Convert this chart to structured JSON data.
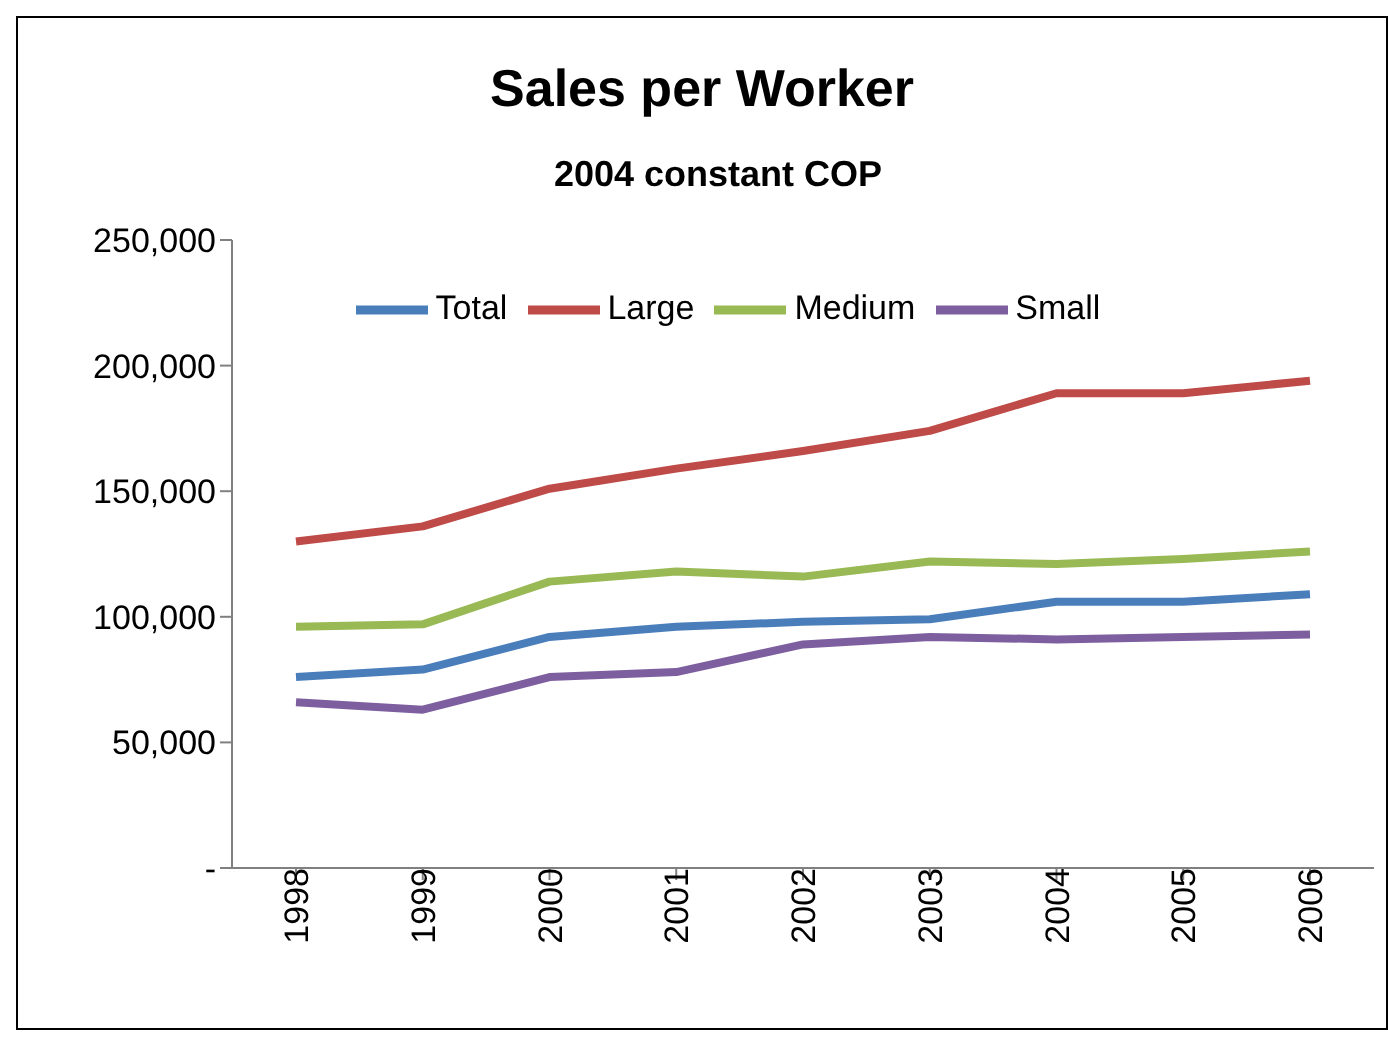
{
  "chart_data": {
    "type": "line",
    "title": "Sales per Worker",
    "subtitle": "2004 constant COP",
    "categories": [
      "1998",
      "1999",
      "2000",
      "2001",
      "2002",
      "2003",
      "2004",
      "2005",
      "2006"
    ],
    "series": [
      {
        "name": "Total",
        "color": "#4a7ebb",
        "values": [
          76000,
          79000,
          92000,
          96000,
          98000,
          99000,
          106000,
          106000,
          109000
        ]
      },
      {
        "name": "Large",
        "color": "#be4b48",
        "values": [
          130000,
          136000,
          151000,
          159000,
          166000,
          174000,
          189000,
          189000,
          194000
        ]
      },
      {
        "name": "Medium",
        "color": "#98b954",
        "values": [
          96000,
          97000,
          114000,
          118000,
          116000,
          122000,
          121000,
          123000,
          126000
        ]
      },
      {
        "name": "Small",
        "color": "#7d5fa0",
        "values": [
          66000,
          63000,
          76000,
          78000,
          89000,
          92000,
          91000,
          92000,
          93000
        ]
      }
    ],
    "ylim": [
      0,
      250000
    ],
    "yticks": [
      {
        "value": 0,
        "label": "-"
      },
      {
        "value": 50000,
        "label": "50,000"
      },
      {
        "value": 100000,
        "label": "100,000"
      },
      {
        "value": 150000,
        "label": "150,000"
      },
      {
        "value": 200000,
        "label": "200,000"
      },
      {
        "value": 250000,
        "label": "250,000"
      }
    ],
    "grid": false,
    "legend": "top",
    "marker": "none",
    "line_style": "solid"
  }
}
